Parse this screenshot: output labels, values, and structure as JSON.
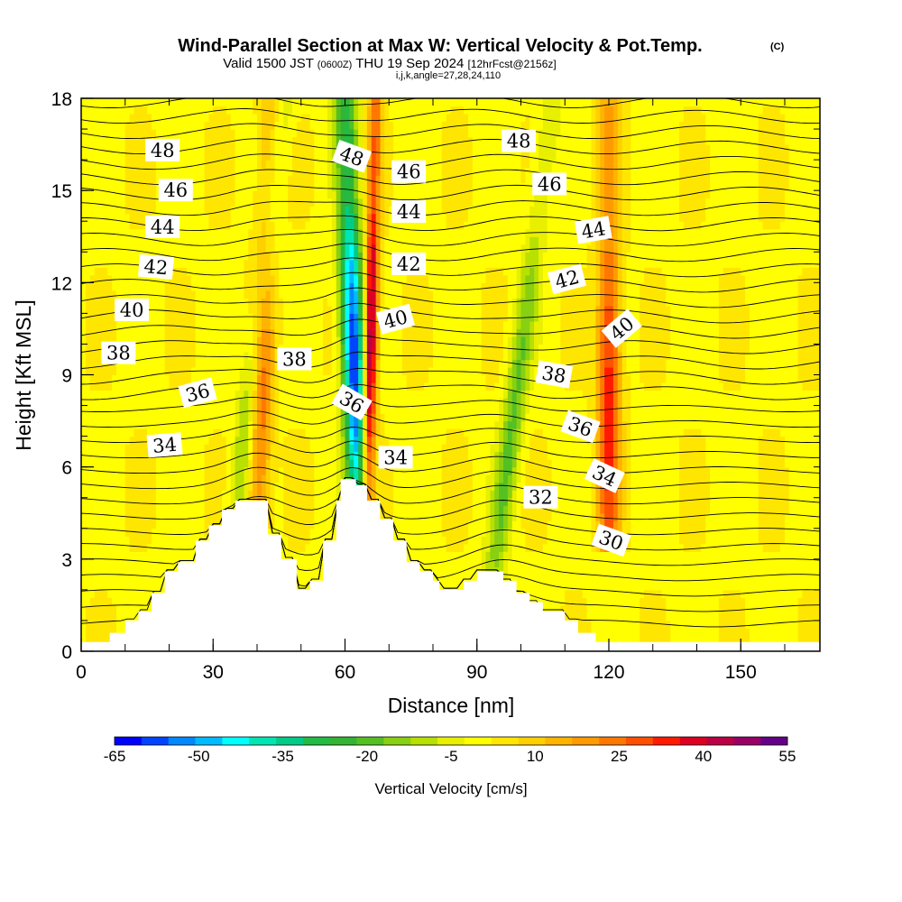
{
  "title": {
    "main": "Wind-Parallel Section at Max W: Vertical Velocity & Pot.Temp.",
    "copyright": "(C)",
    "line2_valid": "Valid 1500 JST",
    "line2_utc": "(0600Z)",
    "line2_date": "THU 19 Sep 2024",
    "line2_fcst": "[12hrFcst@2156z]",
    "line3": "i,j,k,angle=27,28,24,110"
  },
  "chart_data": {
    "type": "heatmap",
    "xlabel": "Distance [nm]",
    "ylabel": "Height [Kft MSL]",
    "xlim": [
      0,
      168
    ],
    "ylim": [
      0,
      18
    ],
    "x_ticks": [
      0,
      30,
      60,
      90,
      120,
      150
    ],
    "y_ticks": [
      0,
      3,
      6,
      9,
      12,
      15,
      18
    ],
    "colorbar": {
      "label": "Vertical Velocity [cm/s]",
      "tick_values": [
        -65,
        -50,
        -35,
        -20,
        -5,
        10,
        25,
        40,
        55
      ],
      "levels": [
        -65,
        -60,
        -55,
        -50,
        -45,
        -40,
        -35,
        -30,
        -25,
        -20,
        -15,
        -10,
        -5,
        0,
        5,
        10,
        15,
        20,
        25,
        30,
        35,
        40,
        45,
        50,
        55
      ],
      "colors": [
        "#0000ff",
        "#0044ff",
        "#0088ff",
        "#00bbff",
        "#00ffff",
        "#00e6b3",
        "#00cc88",
        "#22bb44",
        "#33b533",
        "#55c022",
        "#88d011",
        "#b8e000",
        "#e8f000",
        "#ffff00",
        "#ffe600",
        "#ffd000",
        "#ffb400",
        "#ff9a00",
        "#ff7800",
        "#ff5000",
        "#ff1a00",
        "#dd0022",
        "#bb0044",
        "#990066",
        "#660088"
      ]
    },
    "theta_contour_labels": [
      {
        "value": "48",
        "x": 18.5,
        "y": 16.3,
        "angle": 0
      },
      {
        "value": "46",
        "x": 21.5,
        "y": 15.0,
        "angle": 0
      },
      {
        "value": "44",
        "x": 18.5,
        "y": 13.8,
        "angle": 0
      },
      {
        "value": "42",
        "x": 17.0,
        "y": 12.5,
        "angle": 5
      },
      {
        "value": "40",
        "x": 11.5,
        "y": 11.1,
        "angle": 0
      },
      {
        "value": "38",
        "x": 8.5,
        "y": 9.7,
        "angle": 0
      },
      {
        "value": "36",
        "x": 26.5,
        "y": 8.4,
        "angle": -15
      },
      {
        "value": "34",
        "x": 19.0,
        "y": 6.7,
        "angle": -5
      },
      {
        "value": "48",
        "x": 61.5,
        "y": 16.1,
        "angle": 20
      },
      {
        "value": "46",
        "x": 74.5,
        "y": 15.6,
        "angle": 0
      },
      {
        "value": "44",
        "x": 74.5,
        "y": 14.3,
        "angle": 0
      },
      {
        "value": "42",
        "x": 74.5,
        "y": 12.6,
        "angle": 0
      },
      {
        "value": "40",
        "x": 71.5,
        "y": 10.8,
        "angle": -15
      },
      {
        "value": "38",
        "x": 48.5,
        "y": 9.5,
        "angle": 0
      },
      {
        "value": "36",
        "x": 61.5,
        "y": 8.1,
        "angle": 30
      },
      {
        "value": "34",
        "x": 71.5,
        "y": 6.3,
        "angle": 0
      },
      {
        "value": "48",
        "x": 99.5,
        "y": 16.6,
        "angle": 0
      },
      {
        "value": "46",
        "x": 106.5,
        "y": 15.2,
        "angle": 0
      },
      {
        "value": "44",
        "x": 116.5,
        "y": 13.7,
        "angle": -10
      },
      {
        "value": "42",
        "x": 110.5,
        "y": 12.1,
        "angle": -15
      },
      {
        "value": "40",
        "x": 123.0,
        "y": 10.5,
        "angle": -40
      },
      {
        "value": "38",
        "x": 107.5,
        "y": 9.0,
        "angle": 10
      },
      {
        "value": "36",
        "x": 113.5,
        "y": 7.3,
        "angle": 20
      },
      {
        "value": "34",
        "x": 119.0,
        "y": 5.7,
        "angle": 25
      },
      {
        "value": "32",
        "x": 104.5,
        "y": 5.0,
        "angle": 0
      },
      {
        "value": "30",
        "x": 120.5,
        "y": 3.6,
        "angle": 20
      }
    ],
    "terrain_profile": [
      [
        0,
        0.3
      ],
      [
        6.5,
        0.3
      ],
      [
        6.5,
        0.6
      ],
      [
        10,
        0.6
      ],
      [
        10,
        1.0
      ],
      [
        13,
        1.0
      ],
      [
        13,
        1.3
      ],
      [
        16,
        1.3
      ],
      [
        16,
        1.9
      ],
      [
        19,
        1.9
      ],
      [
        19,
        2.6
      ],
      [
        22,
        2.6
      ],
      [
        22,
        2.9
      ],
      [
        26,
        2.9
      ],
      [
        26,
        3.6
      ],
      [
        29,
        3.6
      ],
      [
        29,
        4.1
      ],
      [
        32,
        4.1
      ],
      [
        32,
        4.6
      ],
      [
        35,
        4.6
      ],
      [
        35,
        4.9
      ],
      [
        42.5,
        4.9
      ],
      [
        42.5,
        3.8
      ],
      [
        45.5,
        3.8
      ],
      [
        45.5,
        3.0
      ],
      [
        49,
        3.0
      ],
      [
        49,
        2.0
      ],
      [
        52,
        2.0
      ],
      [
        52,
        2.3
      ],
      [
        55,
        2.3
      ],
      [
        55,
        3.6
      ],
      [
        58,
        3.6
      ],
      [
        58,
        4.9
      ],
      [
        59,
        4.9
      ],
      [
        59,
        5.6
      ],
      [
        62.5,
        5.6
      ],
      [
        62.5,
        5.4
      ],
      [
        65,
        5.4
      ],
      [
        65,
        4.9
      ],
      [
        68,
        4.9
      ],
      [
        68,
        4.3
      ],
      [
        71,
        4.3
      ],
      [
        71,
        3.6
      ],
      [
        74,
        3.6
      ],
      [
        74,
        2.9
      ],
      [
        77,
        2.9
      ],
      [
        77,
        2.6
      ],
      [
        80,
        2.6
      ],
      [
        80,
        2.3
      ],
      [
        81.5,
        2.3
      ],
      [
        81.5,
        2.0
      ],
      [
        87,
        2.0
      ],
      [
        87,
        2.3
      ],
      [
        90,
        2.3
      ],
      [
        90,
        2.6
      ],
      [
        96,
        2.6
      ],
      [
        96,
        2.3
      ],
      [
        99,
        2.3
      ],
      [
        99,
        1.9
      ],
      [
        102,
        1.9
      ],
      [
        102,
        1.6
      ],
      [
        105,
        1.6
      ],
      [
        105,
        1.3
      ],
      [
        110,
        1.3
      ],
      [
        110,
        1.0
      ],
      [
        113,
        1.0
      ],
      [
        113,
        0.6
      ],
      [
        117,
        0.6
      ],
      [
        117,
        0.3
      ],
      [
        168,
        0.3
      ]
    ],
    "vertical_velocity_features": [
      {
        "kind": "updraft",
        "x_base": 65,
        "y_base": 5.6,
        "x_top": 67,
        "peak": 55
      },
      {
        "kind": "downdraft",
        "x_base": 63,
        "y_base": 5.6,
        "x_top": 60,
        "peak": -65
      },
      {
        "kind": "updraft",
        "x_base": 40,
        "y_base": 4.9,
        "x_top": 43,
        "peak": 30
      },
      {
        "kind": "downdraft",
        "x_base": 36,
        "y_base": 4.9,
        "x_top": 46,
        "peak": -20
      },
      {
        "kind": "updraft",
        "x_base": 120,
        "y_base": 4.0,
        "x_top": 120,
        "peak": 35
      },
      {
        "kind": "downdraft",
        "x_base": 94,
        "y_base": 2.6,
        "x_top": 107,
        "peak": -20
      }
    ]
  }
}
